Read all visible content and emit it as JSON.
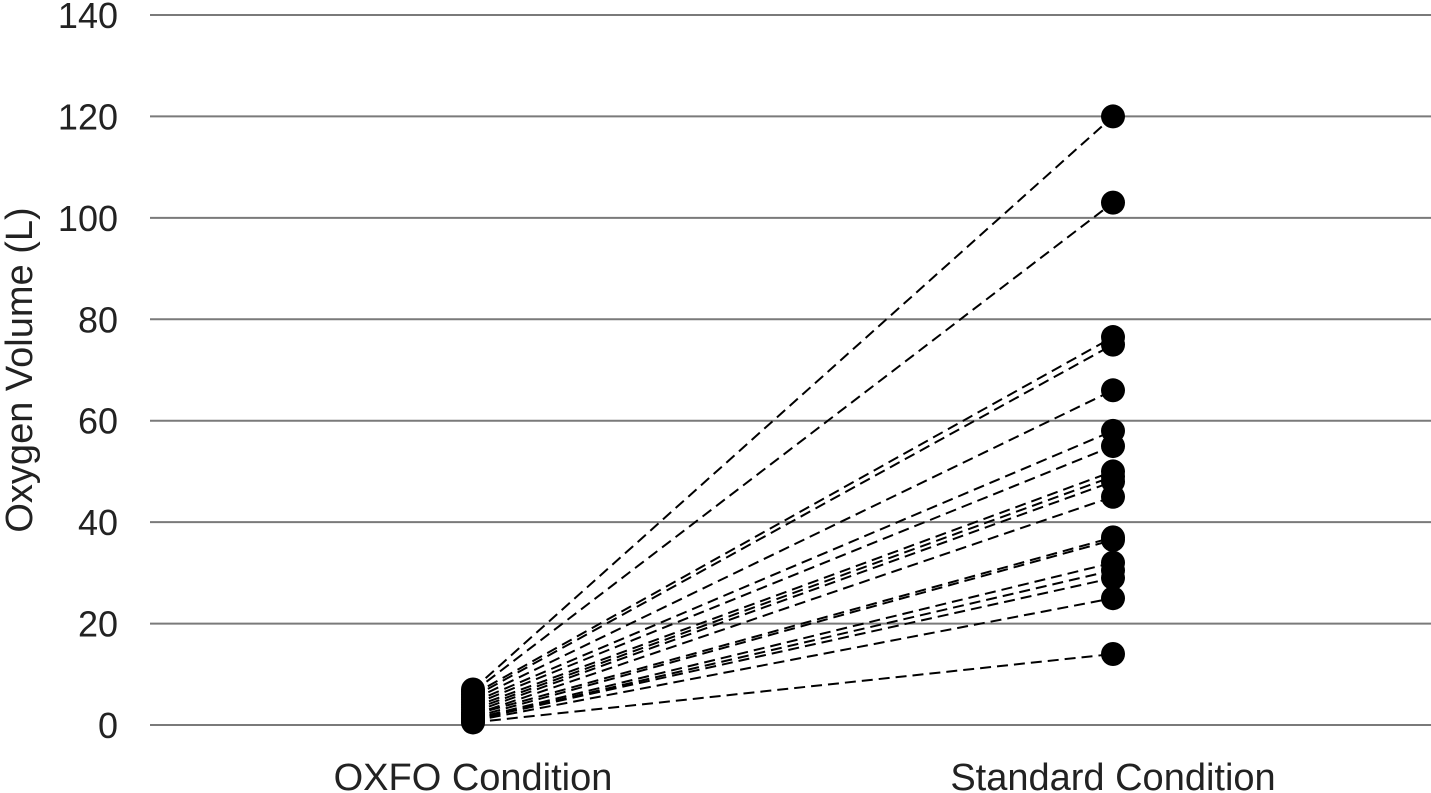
{
  "chart_data": {
    "type": "line",
    "title": "",
    "xlabel": "",
    "ylabel": "Oxygen Volume (L)",
    "categories": [
      "OXFO Condition",
      "Standard Condition"
    ],
    "ylim": [
      0,
      140
    ],
    "yticks": [
      0,
      20,
      40,
      60,
      80,
      100,
      120,
      140
    ],
    "grid": true,
    "legend": "none",
    "marker_color": "#000000",
    "line_style": "dashed",
    "gridline_color": "#7a7a7a",
    "pairs": [
      [
        7.0,
        120.0
      ],
      [
        6.5,
        103.0
      ],
      [
        6.0,
        76.5
      ],
      [
        5.5,
        75.0
      ],
      [
        5.0,
        66.0
      ],
      [
        4.5,
        58.0
      ],
      [
        4.0,
        55.0
      ],
      [
        3.5,
        50.0
      ],
      [
        3.0,
        49.0
      ],
      [
        2.5,
        48.0
      ],
      [
        2.0,
        45.0
      ],
      [
        2.0,
        37.0
      ],
      [
        1.5,
        36.5
      ],
      [
        1.2,
        32.0
      ],
      [
        1.0,
        30.5
      ],
      [
        1.0,
        29.0
      ],
      [
        0.8,
        25.0
      ],
      [
        0.5,
        14.0
      ]
    ]
  }
}
